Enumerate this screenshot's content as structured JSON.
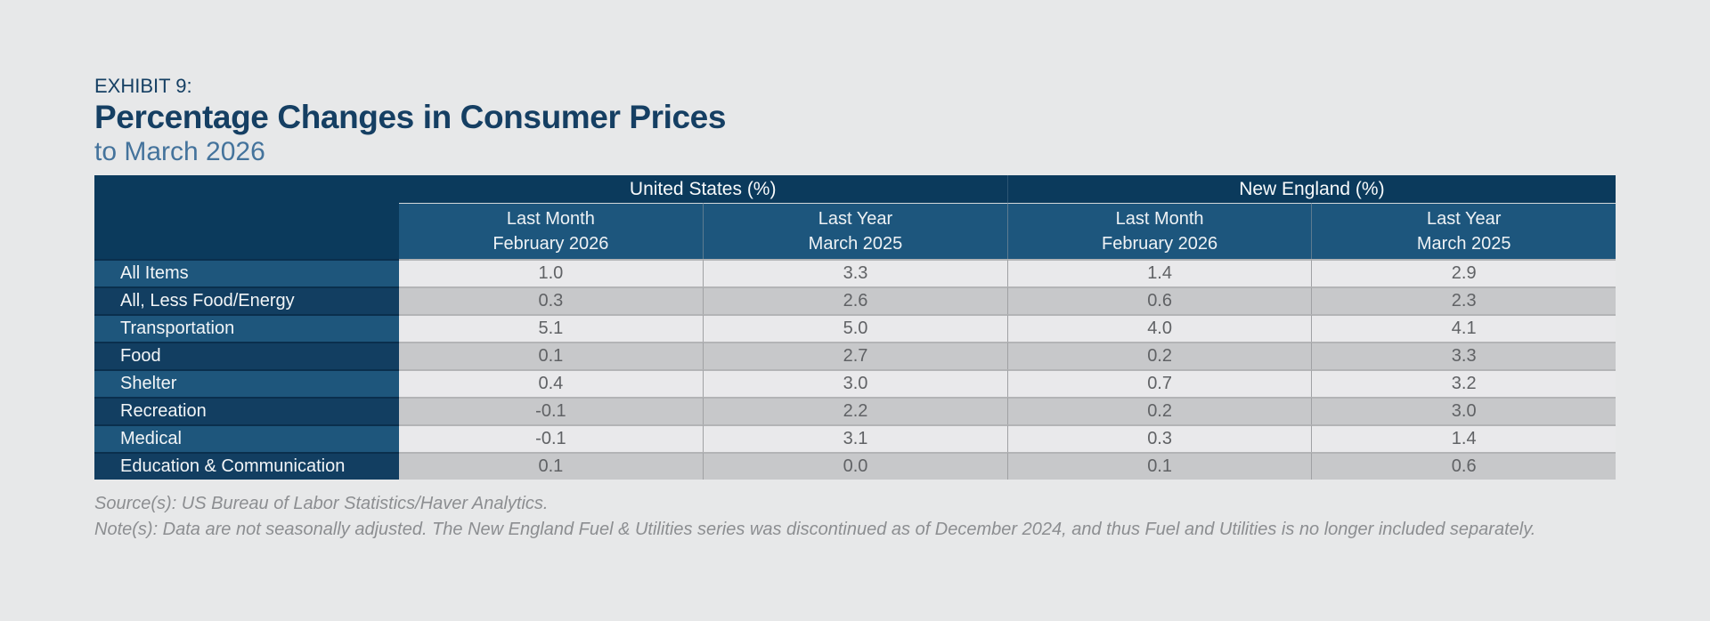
{
  "header": {
    "exhibit_label": "EXHIBIT 9:",
    "title": "Percentage Changes in Consumer Prices",
    "subtitle": "to March 2026"
  },
  "table": {
    "region_headers": [
      {
        "label": "United States (%)"
      },
      {
        "label": "New England (%)"
      }
    ],
    "period_headers": [
      {
        "line1": "Last Month",
        "line2": "February 2026"
      },
      {
        "line1": "Last Year",
        "line2": "March 2025"
      },
      {
        "line1": "Last Month",
        "line2": "February 2026"
      },
      {
        "line1": "Last Year",
        "line2": "March 2025"
      }
    ],
    "rows": [
      {
        "label": "All Items",
        "values": [
          "1.0",
          "3.3",
          "1.4",
          "2.9"
        ]
      },
      {
        "label": "All, Less Food/Energy",
        "values": [
          "0.3",
          "2.6",
          "0.6",
          "2.3"
        ]
      },
      {
        "label": "Transportation",
        "values": [
          "5.1",
          "5.0",
          "4.0",
          "4.1"
        ]
      },
      {
        "label": "Food",
        "values": [
          "0.1",
          "2.7",
          "0.2",
          "3.3"
        ]
      },
      {
        "label": "Shelter",
        "values": [
          "0.4",
          "3.0",
          "0.7",
          "3.2"
        ]
      },
      {
        "label": "Recreation",
        "values": [
          "-0.1",
          "2.2",
          "0.2",
          "3.0"
        ]
      },
      {
        "label": "Medical",
        "values": [
          "-0.1",
          "3.1",
          "0.3",
          "1.4"
        ]
      },
      {
        "label": "Education & Communication",
        "values": [
          "0.1",
          "0.0",
          "0.1",
          "0.6"
        ]
      }
    ]
  },
  "footer": {
    "source": "Source(s): US Bureau of Labor Statistics/Haver Analytics.",
    "note": "Note(s): Data are not seasonally adjusted. The New England Fuel & Utilities series was discontinued as of December 2024, and thus Fuel and Utilities is no longer included separately."
  },
  "colors": {
    "page_background": "#e7e8e9",
    "header_navy": "#0b3a5c",
    "subheader_blue": "#1d567d",
    "row_label_light_blue": "#1e567c",
    "row_label_dark_navy": "#123e61",
    "row_value_light_gray": "#e9e9eb",
    "row_value_dark_gray": "#c7c8ca",
    "title_navy": "#153f63",
    "subtitle_blue": "#44739c",
    "footer_gray": "#8c8e91"
  }
}
